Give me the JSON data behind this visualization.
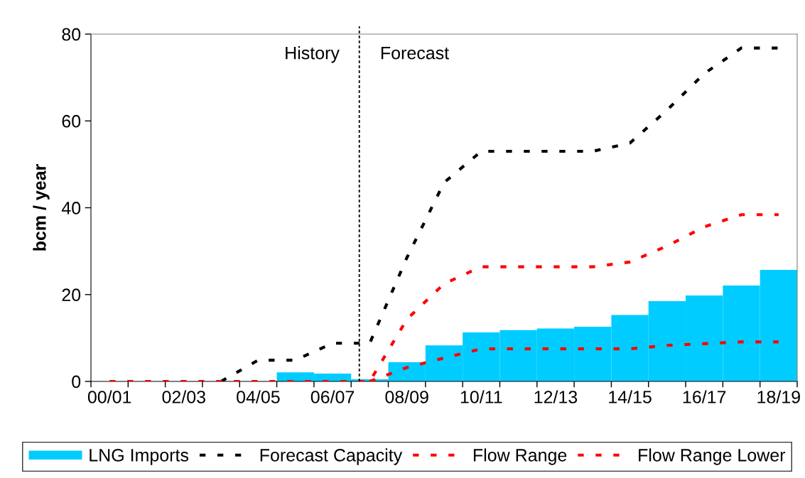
{
  "chart_data": {
    "type": "bar",
    "ylabel": "bcm / year",
    "categories": [
      "00/01",
      null,
      "02/03",
      null,
      "04/05",
      null,
      "06/07",
      null,
      "08/09",
      null,
      "10/11",
      null,
      "12/13",
      null,
      "14/15",
      null,
      "16/17",
      null,
      "18/19"
    ],
    "ylim": [
      0,
      80
    ],
    "yticks": [
      0,
      20,
      40,
      60,
      80
    ],
    "legend": "bottom",
    "series": [
      {
        "name": "LNG Imports",
        "color": "#00ccff",
        "values": [
          null,
          null,
          null,
          null,
          null,
          2.1,
          1.8,
          0.5,
          4.4,
          8.3,
          11.3,
          11.8,
          12.2,
          12.6,
          15.3,
          18.5,
          19.8,
          22.1,
          25.7
        ]
      },
      {
        "name": "Forecast Capacity",
        "type": "line",
        "color": "#000000",
        "line_style": "dashed",
        "values": [
          null,
          null,
          null,
          0,
          4.9,
          4.9,
          8.8,
          8.8,
          28.5,
          45.8,
          53,
          53,
          53,
          53,
          54.9,
          62.5,
          70.9,
          76.8,
          76.8
        ]
      },
      {
        "name": "Flow Range",
        "type": "line",
        "color": "#ff0000",
        "line_style": "dashed",
        "values": [
          0,
          0,
          0,
          0,
          0,
          0,
          0,
          0,
          14.3,
          22.5,
          26.4,
          26.4,
          26.4,
          26.4,
          27.5,
          31.2,
          35.6,
          38.4,
          38.4
        ]
      },
      {
        "name": "Flow Range Lower",
        "type": "line",
        "color": "#ff0000",
        "line_style": "dashed",
        "values": [
          null,
          null,
          null,
          null,
          null,
          null,
          null,
          0,
          3.2,
          5.4,
          7.5,
          7.5,
          7.5,
          7.5,
          7.5,
          8.3,
          8.7,
          9.1,
          9.1
        ]
      }
    ],
    "annotations": [
      "History",
      "Forecast"
    ]
  }
}
